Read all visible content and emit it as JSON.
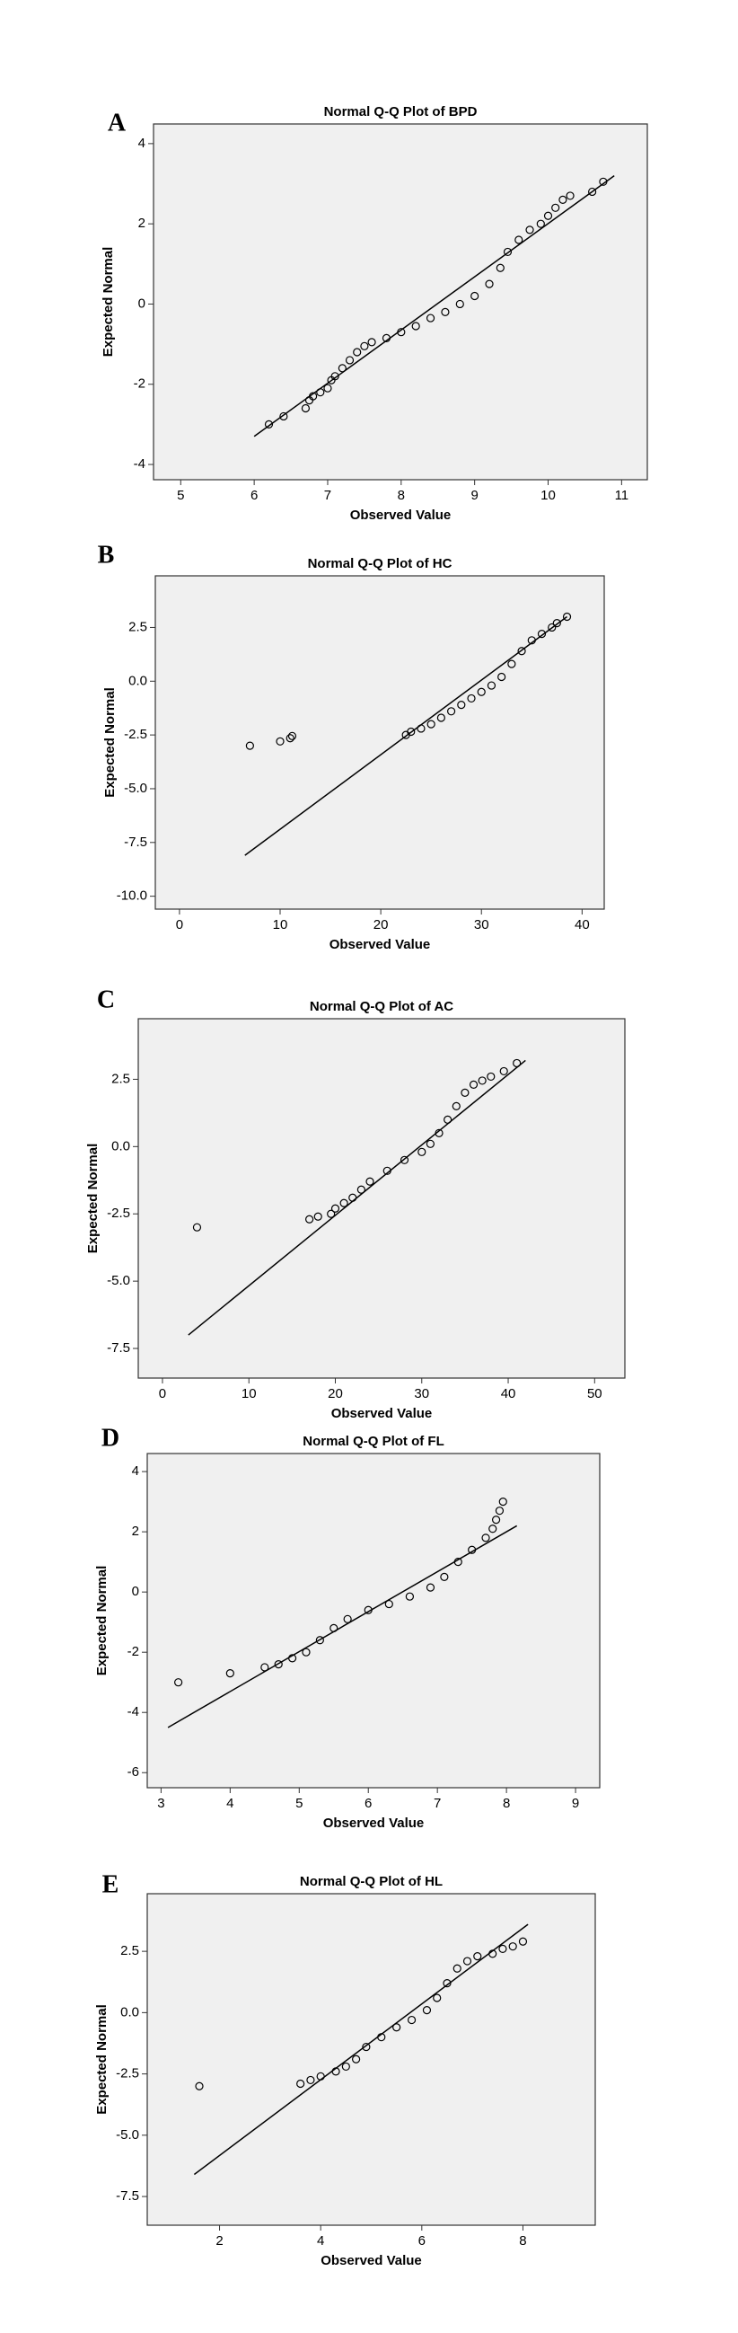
{
  "chart_data": [
    {
      "type": "scatter",
      "panel_label": "A",
      "title": "Normal Q-Q Plot of BPD",
      "x_label": "Observed Value",
      "y_label": "Expected Normal",
      "xlim": [
        4.63,
        11.35
      ],
      "ylim": [
        -4.38,
        4.49
      ],
      "xticks": [
        5,
        6,
        7,
        8,
        9,
        10,
        11
      ],
      "yticks": [
        -4,
        -2,
        0,
        2,
        4
      ],
      "marker_color": "#000000",
      "line_color": "#000000",
      "x": [
        6.2,
        6.4,
        6.7,
        6.75,
        6.8,
        6.9,
        7.0,
        7.05,
        7.1,
        7.2,
        7.3,
        7.4,
        7.5,
        7.6,
        7.8,
        8.0,
        8.2,
        8.4,
        8.6,
        8.8,
        9.0,
        9.2,
        9.35,
        9.45,
        9.6,
        9.75,
        9.9,
        10.0,
        10.1,
        10.2,
        10.3,
        10.6,
        10.75
      ],
      "y": [
        -3.0,
        -2.8,
        -2.6,
        -2.4,
        -2.3,
        -2.2,
        -2.1,
        -1.9,
        -1.8,
        -1.6,
        -1.4,
        -1.2,
        -1.05,
        -0.95,
        -0.85,
        -0.7,
        -0.55,
        -0.35,
        -0.2,
        0.0,
        0.2,
        0.5,
        0.9,
        1.3,
        1.6,
        1.85,
        2.0,
        2.2,
        2.4,
        2.6,
        2.7,
        2.8,
        3.05
      ],
      "reference_line": {
        "x": [
          6.0,
          10.9
        ],
        "y": [
          -3.3,
          3.2
        ]
      }
    },
    {
      "type": "scatter",
      "panel_label": "B",
      "title": "Normal Q-Q Plot of HC",
      "x_label": "Observed Value",
      "y_label": "Expected Normal",
      "xlim": [
        -2.4,
        42.2
      ],
      "ylim": [
        -10.6,
        4.9
      ],
      "xticks": [
        0,
        10,
        20,
        30,
        40
      ],
      "yticks": [
        {
          "value": -10,
          "label": "-10.0"
        },
        {
          "value": -7.5,
          "label": "-7.5"
        },
        {
          "value": -5,
          "label": "-5.0"
        },
        {
          "value": -2.5,
          "label": "-2.5"
        },
        {
          "value": 0,
          "label": "0.0"
        },
        {
          "value": 2.5,
          "label": "2.5"
        }
      ],
      "marker_color": "#000000",
      "line_color": "#000000",
      "x": [
        7,
        10,
        11,
        11.2,
        22.5,
        23,
        24,
        25,
        26,
        27,
        28,
        29,
        30,
        31,
        32,
        33,
        34,
        35,
        36,
        37,
        37.5,
        38.5
      ],
      "y": [
        -3.0,
        -2.8,
        -2.65,
        -2.55,
        -2.5,
        -2.35,
        -2.2,
        -2.0,
        -1.7,
        -1.4,
        -1.1,
        -0.8,
        -0.5,
        -0.2,
        0.2,
        0.8,
        1.4,
        1.9,
        2.2,
        2.5,
        2.7,
        3.0
      ],
      "reference_line": {
        "x": [
          6.5,
          38.5
        ],
        "y": [
          -8.1,
          3.0
        ]
      }
    },
    {
      "type": "scatter",
      "panel_label": "C",
      "title": "Normal Q-Q Plot of AC",
      "x_label": "Observed Value",
      "y_label": "Expected Normal",
      "xlim": [
        -2.8,
        53.5
      ],
      "ylim": [
        -8.6,
        4.75
      ],
      "xticks": [
        0,
        10,
        20,
        30,
        40,
        50
      ],
      "yticks": [
        {
          "value": -7.5,
          "label": "-7.5"
        },
        {
          "value": -5,
          "label": "-5.0"
        },
        {
          "value": -2.5,
          "label": "-2.5"
        },
        {
          "value": 0,
          "label": "0.0"
        },
        {
          "value": 2.5,
          "label": "2.5"
        }
      ],
      "marker_color": "#000000",
      "line_color": "#000000",
      "x": [
        4,
        17,
        18,
        19.5,
        20,
        21,
        22,
        23,
        24,
        26,
        28,
        30,
        31,
        32,
        33,
        34,
        35,
        36,
        37,
        38,
        39.5,
        41
      ],
      "y": [
        -3.0,
        -2.7,
        -2.6,
        -2.5,
        -2.3,
        -2.1,
        -1.9,
        -1.6,
        -1.3,
        -0.9,
        -0.5,
        -0.2,
        0.1,
        0.5,
        1.0,
        1.5,
        2.0,
        2.3,
        2.45,
        2.6,
        2.8,
        3.1
      ],
      "reference_line": {
        "x": [
          3,
          42
        ],
        "y": [
          -7.0,
          3.2
        ]
      }
    },
    {
      "type": "scatter",
      "panel_label": "D",
      "title": "Normal Q-Q Plot of FL",
      "x_label": "Observed Value",
      "y_label": "Expected Normal",
      "xlim": [
        2.8,
        9.35
      ],
      "ylim": [
        -6.5,
        4.6
      ],
      "xticks": [
        3,
        4,
        5,
        6,
        7,
        8,
        9
      ],
      "yticks": [
        -6,
        -4,
        -2,
        0,
        2,
        4
      ],
      "marker_color": "#000000",
      "line_color": "#000000",
      "x": [
        3.25,
        4.0,
        4.5,
        4.7,
        4.9,
        5.1,
        5.3,
        5.5,
        5.7,
        6.0,
        6.3,
        6.6,
        6.9,
        7.1,
        7.3,
        7.5,
        7.7,
        7.8,
        7.85,
        7.9,
        7.95
      ],
      "y": [
        -3.0,
        -2.7,
        -2.5,
        -2.4,
        -2.2,
        -2.0,
        -1.6,
        -1.2,
        -0.9,
        -0.6,
        -0.4,
        -0.15,
        0.15,
        0.5,
        1.0,
        1.4,
        1.8,
        2.1,
        2.4,
        2.7,
        3.0
      ],
      "reference_line": {
        "x": [
          3.1,
          8.15
        ],
        "y": [
          -4.5,
          2.2
        ]
      }
    },
    {
      "type": "scatter",
      "panel_label": "E",
      "title": "Normal Q-Q Plot of HL",
      "x_label": "Observed Value",
      "y_label": "Expected Normal",
      "xlim": [
        0.57,
        9.43
      ],
      "ylim": [
        -8.67,
        4.85
      ],
      "xticks": [
        2,
        4,
        6,
        8
      ],
      "yticks": [
        {
          "value": -7.5,
          "label": "-7.5"
        },
        {
          "value": -5,
          "label": "-5.0"
        },
        {
          "value": -2.5,
          "label": "-2.5"
        },
        {
          "value": 0,
          "label": "0.0"
        },
        {
          "value": 2.5,
          "label": "2.5"
        }
      ],
      "marker_color": "#000000",
      "line_color": "#000000",
      "x": [
        1.6,
        3.6,
        3.8,
        4.0,
        4.3,
        4.5,
        4.7,
        4.9,
        5.2,
        5.5,
        5.8,
        6.1,
        6.3,
        6.5,
        6.7,
        6.9,
        7.1,
        7.4,
        7.6,
        7.8,
        8.0
      ],
      "y": [
        -3.0,
        -2.9,
        -2.75,
        -2.6,
        -2.4,
        -2.2,
        -1.9,
        -1.4,
        -1.0,
        -0.6,
        -0.3,
        0.1,
        0.6,
        1.2,
        1.8,
        2.1,
        2.3,
        2.4,
        2.6,
        2.7,
        2.9
      ],
      "reference_line": {
        "x": [
          1.5,
          8.1
        ],
        "y": [
          -6.6,
          3.6
        ]
      }
    }
  ]
}
